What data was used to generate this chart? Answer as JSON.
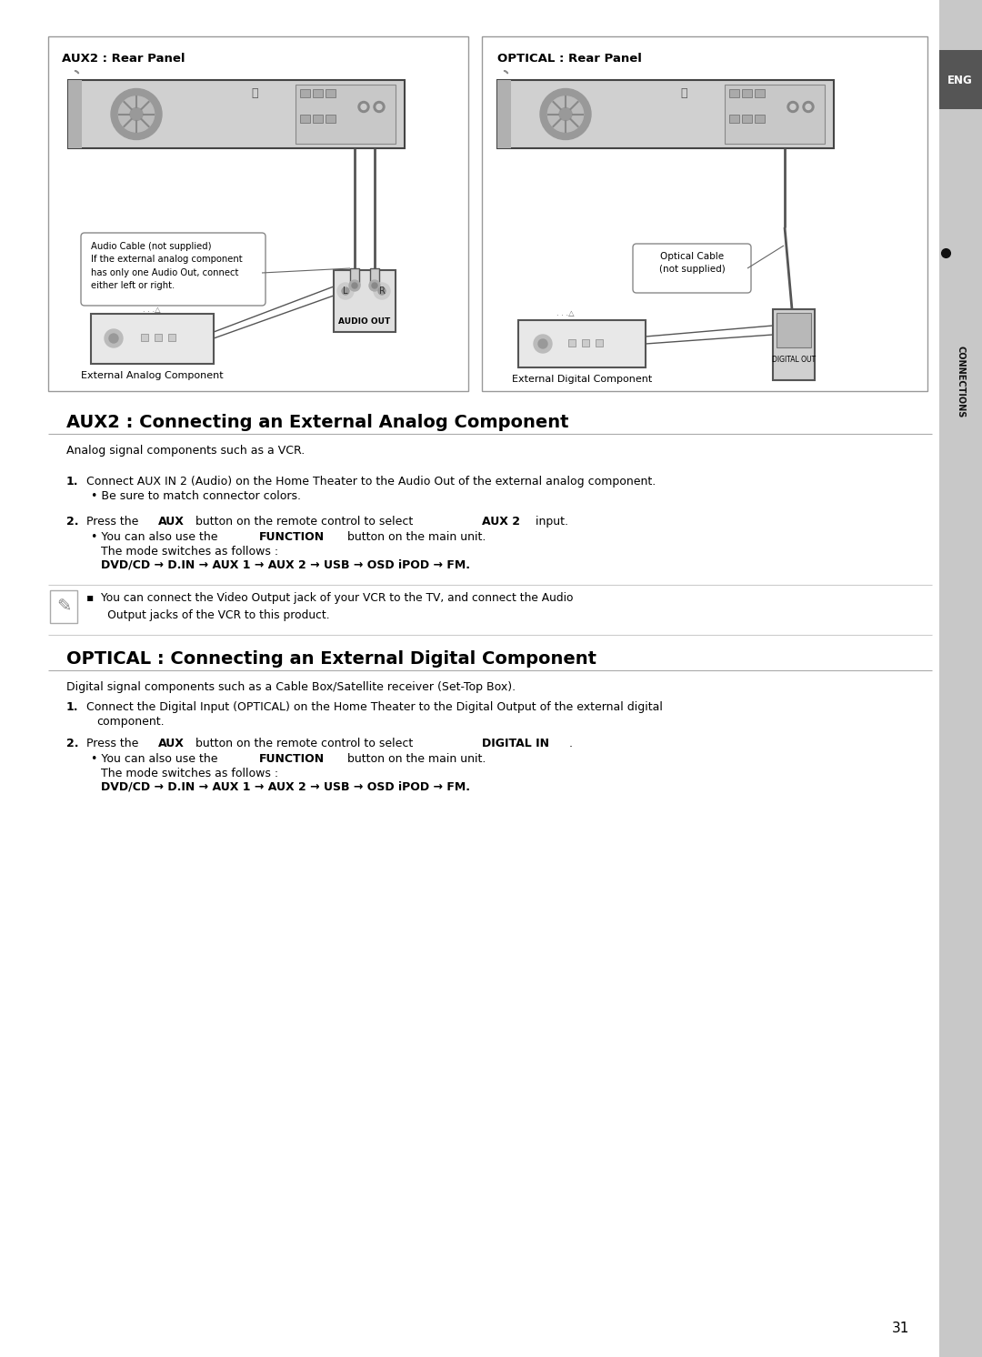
{
  "bg_color": "#ffffff",
  "title_aux2": "AUX2 : Connecting an External Analog Component",
  "title_optical": "OPTICAL : Connecting an External Digital Component",
  "diagram_aux2_label": "AUX2 : Rear Panel",
  "diagram_optical_label": "OPTICAL : Rear Panel",
  "aux2_section": {
    "intro": "Analog signal components such as a VCR.",
    "step1": "Connect AUX IN 2 (Audio) on the Home Theater to the Audio Out of the external analog component.",
    "step1_bullet": "• Be sure to match connector colors.",
    "step2_note": "The mode switches as follows :",
    "mode_sequence": "DVD/CD → D.IN → AUX 1 → AUX 2 → USB → OSD iPOD → FM.",
    "note_text": "▪  You can connect the Video Output jack of your VCR to the TV, and connect the Audio\n      Output jacks of the VCR to this product."
  },
  "optical_section": {
    "intro": "Digital signal components such as a Cable Box/Satellite receiver (Set-Top Box).",
    "step1a": "Connect the Digital Input (OPTICAL) on the Home Theater to the Digital Output of the external digital",
    "step1b": "component.",
    "step2_note": "The mode switches as follows :",
    "mode_sequence": "DVD/CD → D.IN → AUX 1 → AUX 2 → USB → OSD iPOD → FM."
  },
  "page_number": "31",
  "audio_cable_note": "Audio Cable (not supplied)\nIf the external analog component\nhas only one Audio Out, connect\neither left or right.",
  "optical_cable_note": "Optical Cable\n(not supplied)",
  "ext_analog_label": "External Analog Component",
  "ext_digital_label": "External Digital Component",
  "audio_out_label": "AUDIO OUT"
}
